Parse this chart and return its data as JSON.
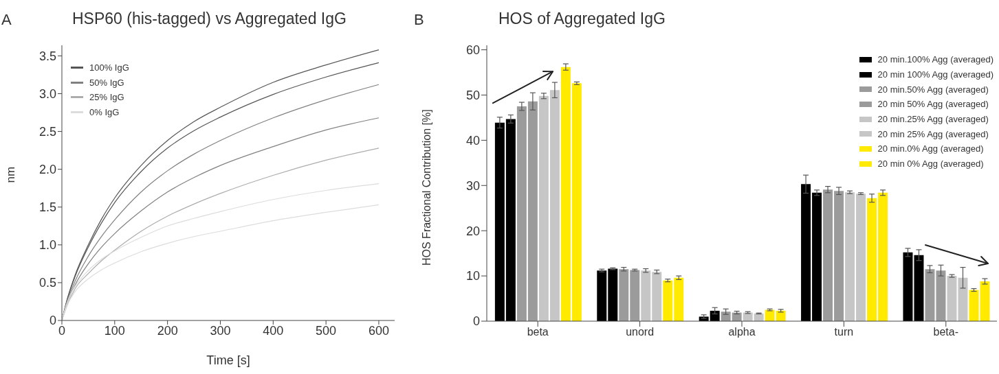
{
  "chart_data": [
    {
      "type": "line",
      "title": "HSP60 (his-tagged) vs Aggregated IgG",
      "annotations": [
        "A"
      ],
      "xlabel": "Time [s]",
      "ylabel": "nm",
      "legend": "top left",
      "x": [
        0,
        10,
        25,
        50,
        75,
        100,
        150,
        200,
        250,
        300,
        400,
        500,
        600
      ],
      "xlim": [
        0,
        630
      ],
      "xticks": [
        0,
        100,
        200,
        300,
        400,
        500,
        600
      ],
      "ylim": [
        0,
        3.64
      ],
      "yticks": [
        0,
        0.5,
        {
          "value": 1,
          "label": "1.0"
        },
        1.5,
        {
          "value": 2,
          "label": "2.0"
        },
        2.5,
        {
          "value": 3,
          "label": "3.0"
        },
        3.5
      ],
      "series": [
        {
          "name": "100% IgG",
          "color": "#555555",
          "values": [
            0,
            0.28,
            0.6,
            1.0,
            1.34,
            1.62,
            2.05,
            2.38,
            2.63,
            2.82,
            3.15,
            3.38,
            3.58
          ]
        },
        {
          "color": "#555555",
          "values": [
            0,
            0.27,
            0.58,
            0.97,
            1.29,
            1.56,
            1.97,
            2.28,
            2.51,
            2.69,
            2.99,
            3.22,
            3.41
          ]
        },
        {
          "name": "50% IgG",
          "color": "#808080",
          "values": [
            0,
            0.25,
            0.52,
            0.85,
            1.11,
            1.33,
            1.7,
            1.98,
            2.2,
            2.38,
            2.68,
            2.92,
            3.12
          ]
        },
        {
          "color": "#808080",
          "values": [
            0,
            0.23,
            0.47,
            0.75,
            0.97,
            1.15,
            1.45,
            1.7,
            1.89,
            2.05,
            2.3,
            2.52,
            2.68
          ]
        },
        {
          "name": "25% IgG",
          "color": "#acacac",
          "values": [
            0,
            0.2,
            0.42,
            0.62,
            0.79,
            0.93,
            1.18,
            1.38,
            1.54,
            1.68,
            1.92,
            2.12,
            2.28
          ]
        },
        {
          "name": "0% IgG",
          "color": "#dcdcdc",
          "values": [
            0,
            0.24,
            0.45,
            0.66,
            0.81,
            0.92,
            1.1,
            1.25,
            1.35,
            1.44,
            1.6,
            1.72,
            1.81
          ]
        },
        {
          "color": "#dcdcdc",
          "values": [
            0,
            0.2,
            0.38,
            0.55,
            0.67,
            0.76,
            0.91,
            1.02,
            1.11,
            1.18,
            1.32,
            1.43,
            1.53
          ]
        }
      ]
    },
    {
      "type": "bar",
      "title": "HOS of Aggregated IgG",
      "annotations": [
        "B"
      ],
      "ylabel": "HOS Fractional Contribution [%]",
      "legend": "top right",
      "categories": [
        "beta",
        "unord",
        "alpha",
        "turn",
        "beta-"
      ],
      "ylim": [
        0,
        61
      ],
      "yticks": [
        0,
        10,
        20,
        30,
        40,
        50,
        60
      ],
      "series": [
        {
          "name": "20 min.100% Agg (averaged)",
          "color": "#000000",
          "values": [
            43.9,
            11.2,
            1.0,
            30.3,
            15.2
          ],
          "errors": [
            1.2,
            0.3,
            0.4,
            2.0,
            0.9
          ]
        },
        {
          "name": "20 min 100% Agg (averaged)",
          "color": "#000000",
          "values": [
            44.7,
            11.6,
            2.3,
            28.4,
            14.6
          ],
          "errors": [
            0.9,
            0.2,
            0.7,
            0.6,
            1.2
          ]
        },
        {
          "name": "20 min.50% Agg (averaged)",
          "color": "#9b9b9b",
          "values": [
            47.5,
            11.5,
            2.1,
            29.1,
            11.5
          ],
          "errors": [
            0.9,
            0.4,
            0.6,
            0.7,
            0.8
          ]
        },
        {
          "name": "20 min 50% Agg (averaged)",
          "color": "#9b9b9b",
          "values": [
            48.6,
            11.3,
            1.9,
            28.8,
            11.2
          ],
          "errors": [
            1.9,
            0.2,
            0.3,
            0.8,
            1.2
          ]
        },
        {
          "name": "20 min.25% Agg (averaged)",
          "color": "#c6c6c6",
          "values": [
            49.8,
            11.2,
            1.9,
            28.5,
            10.0
          ],
          "errors": [
            0.6,
            0.4,
            0.2,
            0.3,
            0.3
          ]
        },
        {
          "name": "20 min 25% Agg (averaged)",
          "color": "#c6c6c6",
          "values": [
            51.1,
            10.9,
            1.7,
            28.2,
            9.6
          ],
          "errors": [
            1.7,
            0.4,
            0.1,
            0.2,
            2.3
          ]
        },
        {
          "name": "20 min.0% Agg (averaged)",
          "color": "#ffea00",
          "values": [
            56.2,
            9.0,
            2.5,
            27.2,
            6.9
          ],
          "errors": [
            0.7,
            0.3,
            0.2,
            0.9,
            0.3
          ]
        },
        {
          "name": "20 min 0% Agg (averaged)",
          "color": "#ffea00",
          "values": [
            52.6,
            9.6,
            2.3,
            28.4,
            8.8
          ],
          "errors": [
            0.3,
            0.4,
            0.3,
            0.6,
            0.6
          ]
        }
      ]
    }
  ]
}
